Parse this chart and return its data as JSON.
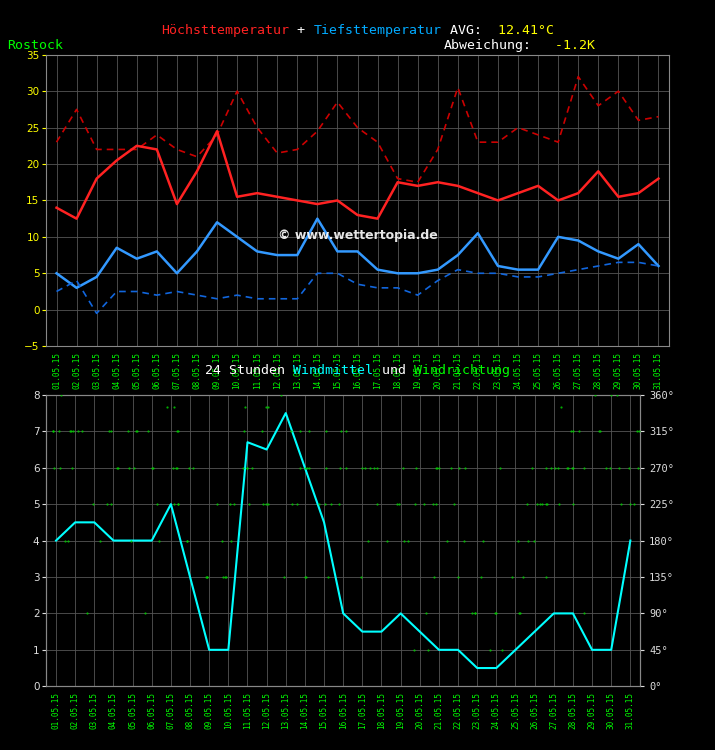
{
  "bg_color": "#000000",
  "grid_color": "#555555",
  "temp_chart": {
    "ylim": [
      -5,
      35
    ],
    "yticks": [
      -5,
      0,
      5,
      10,
      15,
      20,
      25,
      30,
      35
    ],
    "ytick_color": "#ffff00",
    "high_solid": [
      14,
      12.5,
      18,
      20.5,
      22.5,
      22,
      14.5,
      19,
      24.5,
      15.5,
      16,
      15.5,
      15,
      14.5,
      15,
      13,
      12.5,
      17.5,
      17,
      17.5,
      17,
      16,
      15,
      16,
      17,
      15,
      16,
      19,
      15.5,
      16,
      18
    ],
    "high_dashed": [
      23,
      27.5,
      22,
      22,
      22,
      24,
      22,
      21,
      24,
      30,
      25,
      21.5,
      22,
      24.5,
      28.5,
      25,
      23,
      18,
      17.5,
      22,
      30.5,
      23,
      23,
      25,
      24,
      23,
      32,
      28,
      30,
      26,
      26.5
    ],
    "low_solid": [
      5,
      3,
      4.5,
      8.5,
      7,
      8,
      5,
      8,
      12,
      10,
      8,
      7.5,
      7.5,
      12.5,
      8,
      8,
      5.5,
      5,
      5,
      5.5,
      7.5,
      10.5,
      6,
      5.5,
      5.5,
      10,
      9.5,
      8,
      7,
      9,
      6
    ],
    "low_dashed": [
      2.5,
      4,
      -0.5,
      2.5,
      2.5,
      2,
      2.5,
      2,
      1.5,
      2,
      1.5,
      1.5,
      1.5,
      5,
      5,
      3.5,
      3,
      3,
      2,
      4,
      5.5,
      5,
      5,
      4.5,
      4.5,
      5,
      5.5,
      6,
      6.5,
      6.5,
      6
    ]
  },
  "wind_chart": {
    "ylim_left": [
      0,
      8
    ],
    "ylim_right": [
      0,
      360
    ],
    "yticks_left": [
      0,
      1,
      2,
      3,
      4,
      5,
      6,
      7,
      8
    ],
    "yticks_right": [
      0,
      45,
      90,
      135,
      180,
      225,
      270,
      315,
      360
    ],
    "ytick_labels_right": [
      "0°",
      "45°",
      "90°",
      "135°",
      "180°",
      "225°",
      "270°",
      "315°",
      "360°"
    ],
    "wind_speed": [
      4,
      4.5,
      4.5,
      4,
      4,
      4,
      5,
      3,
      1,
      1,
      6.7,
      6.5,
      7.5,
      6,
      4.5,
      2,
      1.5,
      1.5,
      2,
      1.5,
      1,
      1,
      0.5,
      0.5,
      1,
      1.5,
      2,
      2,
      1,
      1,
      4
    ],
    "wind_dir_deg": [
      315,
      270,
      225,
      270,
      315,
      270,
      270,
      225,
      135,
      180,
      270,
      270,
      315,
      315,
      270,
      225,
      180,
      225,
      225,
      270,
      270,
      225,
      135,
      90,
      135,
      180,
      225,
      270,
      315,
      315,
      270
    ],
    "wind_speed_color": "#00ffff",
    "wind_dir_color": "#00cc00"
  },
  "xtick_labels": [
    "01.05.15",
    "02.05.15",
    "03.05.15",
    "04.05.15",
    "05.05.15",
    "06.05.15",
    "07.05.15",
    "08.05.15",
    "09.05.15",
    "10.05.15",
    "11.05.15",
    "12.05.15",
    "13.05.15",
    "14.05.15",
    "15.05.15",
    "16.05.15",
    "17.05.15",
    "18.05.15",
    "19.05.15",
    "20.05.15",
    "21.05.15",
    "22.05.15",
    "23.05.15",
    "24.05.15",
    "25.05.15",
    "26.05.15",
    "27.05.15",
    "28.05.15",
    "29.05.15",
    "30.05.15",
    "31.05.15"
  ],
  "watermark": "© www.wettertopia.de"
}
